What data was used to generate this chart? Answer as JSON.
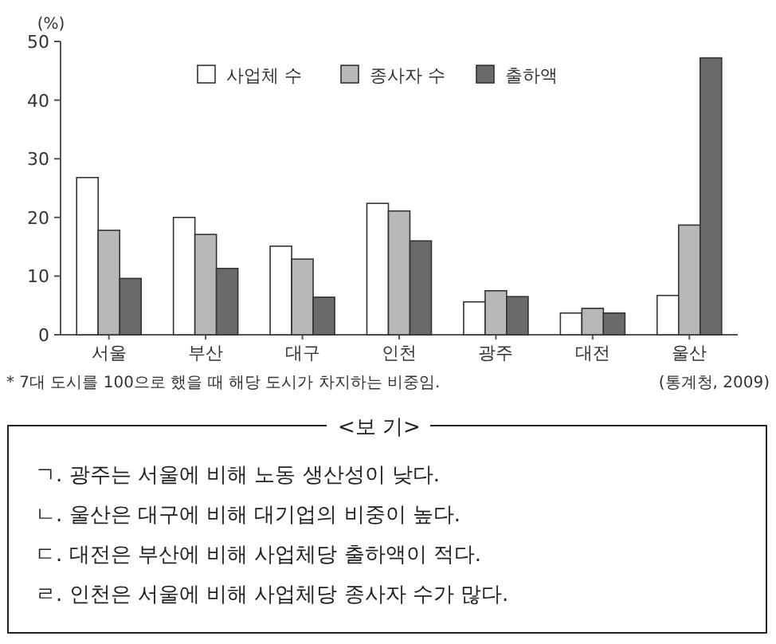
{
  "chart_data": {
    "type": "bar",
    "ylabel": "(%)",
    "categories": [
      "서울",
      "부산",
      "대구",
      "인천",
      "광주",
      "대전",
      "울산"
    ],
    "series": [
      {
        "name": "사업체 수",
        "color": "#ffffff",
        "values": [
          26.8,
          20.0,
          15.1,
          22.4,
          5.6,
          3.7,
          6.7
        ]
      },
      {
        "name": "종사자 수",
        "color": "#b8b8b8",
        "values": [
          17.8,
          17.1,
          12.9,
          21.1,
          7.5,
          4.5,
          18.7
        ]
      },
      {
        "name": "출하액",
        "color": "#6a6a6a",
        "values": [
          9.6,
          11.3,
          6.4,
          16.0,
          6.5,
          3.7,
          47.2
        ]
      }
    ],
    "ylim": [
      0,
      50
    ],
    "yticks": [
      0,
      10,
      20,
      30,
      40,
      50
    ],
    "legend": "top",
    "annotations": [
      "* 7대 도시를 100으로 했을 때 해당 도시가 차지하는 비중임.",
      "(통계청, 2009)",
      "<보 기>",
      "ㄱ. 광주는 서울에 비해 노동 생산성이 낮다.",
      "ㄴ. 울산은 대구에 비해 대기업의 비중이 높다.",
      "ㄷ. 대전은 부산에 비해 사업체당 출하액이 적다.",
      "ㄹ. 인천은 서울에 비해 사업체당 종사자 수가 많다."
    ]
  }
}
